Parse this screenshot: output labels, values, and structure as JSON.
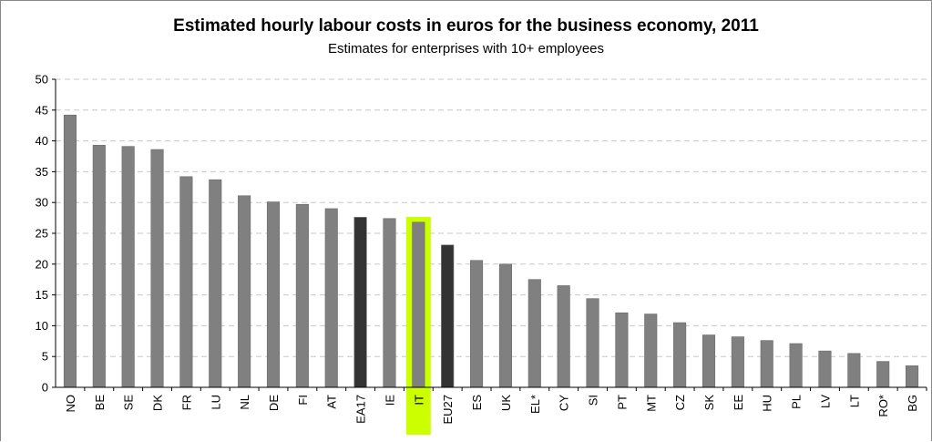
{
  "chart_data": {
    "type": "bar",
    "title": "Estimated hourly labour costs in euros for the business economy, 2011",
    "subtitle": "Estimates for enterprises with 10+ employees",
    "xlabel": "",
    "ylabel": "",
    "ylim": [
      0,
      50
    ],
    "yticks": [
      0,
      5,
      10,
      15,
      20,
      25,
      30,
      35,
      40,
      45,
      50
    ],
    "grid": true,
    "categories": [
      "NO",
      "BE",
      "SE",
      "DK",
      "FR",
      "LU",
      "NL",
      "DE",
      "FI",
      "AT",
      "EA17",
      "IE",
      "IT",
      "EU27",
      "ES",
      "UK",
      "EL*",
      "CY",
      "SI",
      "PT",
      "MT",
      "CZ",
      "SK",
      "EE",
      "HU",
      "PL",
      "LV",
      "LT",
      "RO*",
      "BG"
    ],
    "values": [
      44.2,
      39.3,
      39.1,
      38.6,
      34.2,
      33.7,
      31.1,
      30.1,
      29.7,
      29.0,
      27.6,
      27.4,
      26.8,
      23.1,
      20.6,
      20.0,
      17.5,
      16.5,
      14.4,
      12.1,
      11.9,
      10.5,
      8.5,
      8.2,
      7.6,
      7.1,
      5.9,
      5.5,
      4.2,
      3.5
    ],
    "aggregate_categories": [
      "EA17",
      "EU27"
    ],
    "highlighted_category": "IT",
    "colors": {
      "bar": "#808080",
      "aggregate": "#333333",
      "highlight": "#ccff00",
      "grid": "#c8c8c8"
    }
  }
}
